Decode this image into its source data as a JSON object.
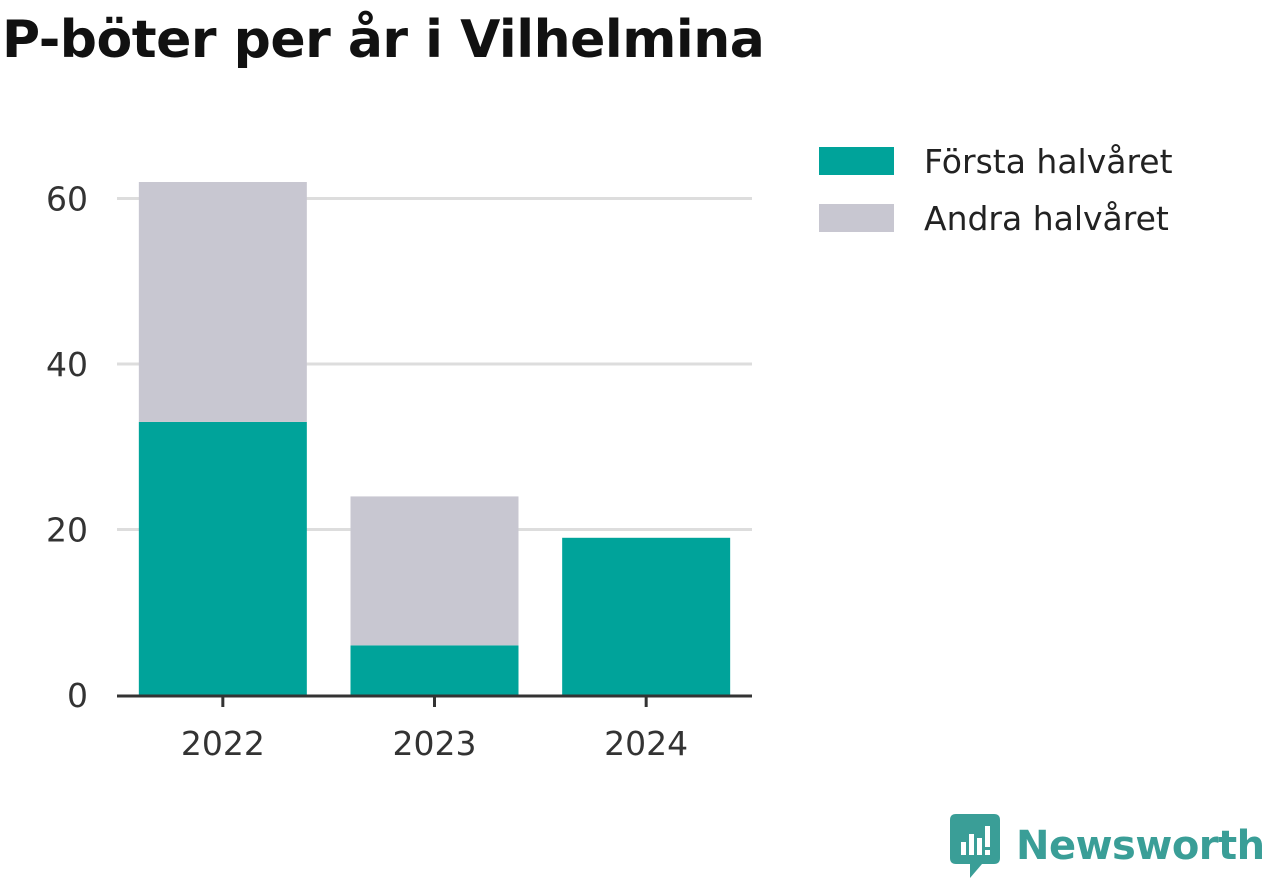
{
  "colors": {
    "first_half": "#00a39a",
    "second_half": "#c8c7d1",
    "grid": "#dddddd",
    "axis": "#333333",
    "brand": "#3a9e97"
  },
  "brand": {
    "name": "Newsworthy",
    "icon": "newsworthy-logo-icon"
  },
  "chart_data": {
    "type": "bar",
    "stacked": true,
    "title": "P-böter per år i Vilhelmina",
    "xlabel": "",
    "ylabel": "",
    "categories": [
      "2022",
      "2023",
      "2024"
    ],
    "series": [
      {
        "name": "Första halvåret",
        "values": [
          33,
          6,
          19
        ]
      },
      {
        "name": "Andra halvåret",
        "values": [
          29,
          18,
          0
        ]
      }
    ],
    "ylim": [
      0,
      62
    ],
    "yticks": [
      0,
      20,
      40,
      60
    ],
    "grid": true,
    "legend": "top-right"
  }
}
